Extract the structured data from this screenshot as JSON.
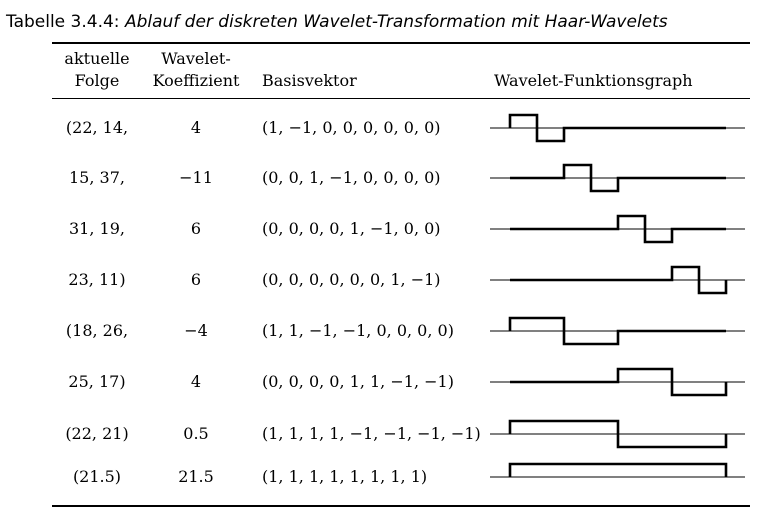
{
  "caption": {
    "label": "Tabelle 3.4.4:",
    "title": "Ablauf der diskreten Wavelet-Transformation mit Haar-Wavelets"
  },
  "headers": {
    "col1": [
      "aktuelle",
      "Folge"
    ],
    "col2": [
      "Wavelet-",
      "Koeffizient"
    ],
    "col3": "Basisvektor",
    "col4": "Wavelet-Funktionsgraph"
  },
  "rows": [
    {
      "folge": "(22, 14,",
      "koeffizient": "4",
      "basis": "(1, −1, 0, 0, 0, 0, 0, 0)",
      "vector": [
        1,
        -1,
        0,
        0,
        0,
        0,
        0,
        0
      ]
    },
    {
      "folge": "15, 37,",
      "koeffizient": "−11",
      "basis": "(0, 0, 1, −1, 0, 0, 0, 0)",
      "vector": [
        0,
        0,
        1,
        -1,
        0,
        0,
        0,
        0
      ]
    },
    {
      "folge": "31, 19,",
      "koeffizient": "6",
      "basis": "(0, 0, 0, 0, 1, −1, 0, 0)",
      "vector": [
        0,
        0,
        0,
        0,
        1,
        -1,
        0,
        0
      ]
    },
    {
      "folge": "23, 11)",
      "koeffizient": "6",
      "basis": "(0, 0, 0, 0, 0, 0, 1, −1)",
      "vector": [
        0,
        0,
        0,
        0,
        0,
        0,
        1,
        -1
      ]
    },
    {
      "folge": "(18, 26,",
      "koeffizient": "−4",
      "basis": "(1, 1, −1, −1, 0, 0, 0, 0)",
      "vector": [
        1,
        1,
        -1,
        -1,
        0,
        0,
        0,
        0
      ]
    },
    {
      "folge": "25, 17)",
      "koeffizient": "4",
      "basis": "(0, 0, 0, 0, 1, 1, −1, −1)",
      "vector": [
        0,
        0,
        0,
        0,
        1,
        1,
        -1,
        -1
      ]
    },
    {
      "folge": "(22, 21)",
      "koeffizient": "0.5",
      "basis": "(1, 1, 1, 1, −1, −1, −1, −1)",
      "vector": [
        1,
        1,
        1,
        1,
        -1,
        -1,
        -1,
        -1
      ]
    },
    {
      "folge": "(21.5)",
      "koeffizient": "21.5",
      "basis": "(1, 1, 1, 1, 1, 1, 1, 1)",
      "vector": [
        1,
        1,
        1,
        1,
        1,
        1,
        1,
        1
      ]
    }
  ]
}
